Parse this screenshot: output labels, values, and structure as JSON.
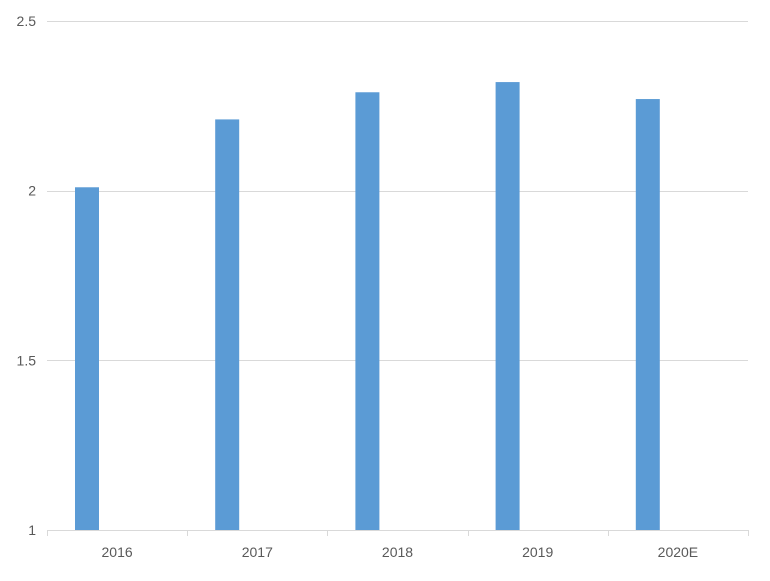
{
  "chart_data": {
    "type": "bar",
    "categories": [
      "2016",
      "2017",
      "2018",
      "2019",
      "2020E"
    ],
    "series": [
      {
        "values": [
          2.01,
          2.21,
          2.29,
          2.32,
          2.27
        ],
        "color": "#5B9BD5"
      }
    ],
    "ylim": [
      1,
      2.5
    ],
    "yticks": [
      "1",
      "1.5",
      "2",
      "2.5"
    ],
    "ytick_values": [
      1,
      1.5,
      2,
      2.5
    ],
    "grid": true,
    "gridline_color": "#D9D9D9",
    "title": "",
    "xlabel": "",
    "ylabel": ""
  }
}
